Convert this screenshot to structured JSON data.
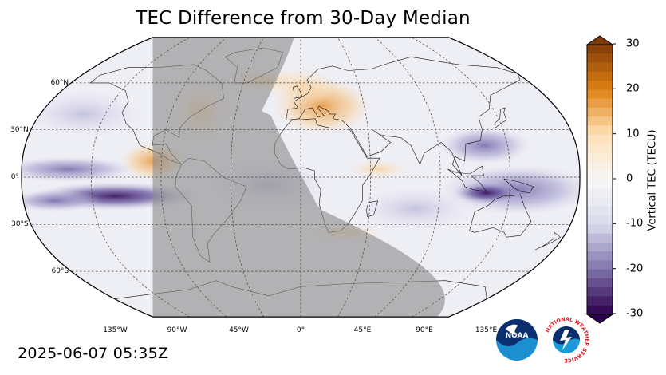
{
  "title": "TEC Difference from 30-Day Median",
  "timestamp": "2025-06-07 05:35Z",
  "map": {
    "projection": "robinson",
    "lat_labels": [
      "60°N",
      "30°N",
      "0°",
      "30°S",
      "60°S"
    ],
    "lon_labels": [
      "135°W",
      "90°W",
      "45°W",
      "0°",
      "45°E",
      "90°E",
      "135°E"
    ],
    "night_shading": true
  },
  "colorbar": {
    "label": "Vertical TEC (TECU)",
    "ticks": [
      "30",
      "20",
      "10",
      "0",
      "-10",
      "-20",
      "-30"
    ],
    "range": [
      -30,
      30
    ],
    "colors": {
      "high": "#7f3b08",
      "mid_high": "#e08214",
      "light_high": "#fee0b6",
      "zero": "#f7f7f7",
      "light_low": "#d8daeb",
      "mid_low": "#8073ac",
      "low": "#2d004b"
    }
  },
  "logos": {
    "noaa_text": "NOAA",
    "nws_text": "NATIONAL WEATHER SERVICE"
  }
}
